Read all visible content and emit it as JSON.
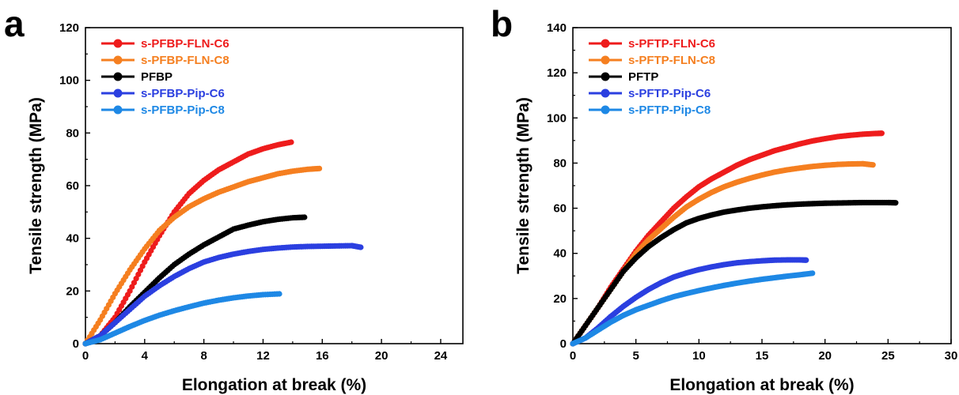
{
  "chart_data": [
    {
      "type": "line",
      "panel_label": "a",
      "xlabel": "Elongation at break (%)",
      "ylabel": "Tensile strength (MPa)",
      "xlim": [
        0,
        25.5
      ],
      "ylim": [
        0,
        120
      ],
      "xticks": [
        0,
        4,
        8,
        12,
        16,
        20,
        24
      ],
      "yticks": [
        0,
        20,
        40,
        60,
        80,
        100,
        120
      ],
      "legend_position": "top-left",
      "grid": false,
      "series": [
        {
          "name": "s-PFBP-FLN-C6",
          "color": "#ee1c1c",
          "x": [
            0,
            1,
            2,
            3,
            4,
            5,
            6,
            7,
            8,
            9,
            10,
            11,
            12,
            13,
            13.9
          ],
          "y": [
            0,
            3,
            10,
            20,
            31,
            41,
            50,
            57,
            62,
            66,
            69,
            72,
            74,
            75.5,
            76.5
          ]
        },
        {
          "name": "s-PFBP-FLN-C8",
          "color": "#f57f20",
          "x": [
            0,
            1,
            2,
            3,
            4,
            5,
            6,
            7,
            8,
            9,
            10,
            11,
            12,
            13,
            14,
            15,
            15.8
          ],
          "y": [
            0,
            9,
            19,
            28,
            36,
            43,
            48,
            52,
            55,
            57.5,
            59.5,
            61.5,
            63,
            64.5,
            65.5,
            66.2,
            66.5
          ]
        },
        {
          "name": "PFBP",
          "color": "#000000",
          "x": [
            0,
            1,
            2,
            3,
            4,
            5,
            6,
            7,
            8,
            9,
            10,
            11,
            12,
            13,
            14,
            14.8
          ],
          "y": [
            0,
            3,
            8,
            14,
            19.5,
            25,
            30,
            34,
            37.5,
            40.5,
            43.5,
            45,
            46.3,
            47.2,
            47.8,
            48
          ]
        },
        {
          "name": "s-PFBP-Pip-C6",
          "color": "#2b3fe0",
          "x": [
            0,
            1,
            2,
            3,
            4,
            5,
            6,
            7,
            8,
            9,
            10,
            11,
            12,
            13,
            14,
            15,
            16,
            17,
            18,
            18.6
          ],
          "y": [
            0,
            3,
            8,
            13,
            18,
            22,
            25.5,
            28.5,
            31,
            32.7,
            34,
            35,
            35.8,
            36.3,
            36.7,
            36.9,
            37,
            37.1,
            37.2,
            36.6
          ]
        },
        {
          "name": "s-PFBP-Pip-C8",
          "color": "#1e88e5",
          "x": [
            0,
            1,
            2,
            3,
            4,
            5,
            6,
            7,
            8,
            9,
            10,
            11,
            12,
            13.1
          ],
          "y": [
            0,
            1.5,
            4,
            6.5,
            8.8,
            10.8,
            12.5,
            14,
            15.4,
            16.5,
            17.4,
            18.1,
            18.6,
            18.9
          ]
        }
      ]
    },
    {
      "type": "line",
      "panel_label": "b",
      "xlabel": "Elongation at break (%)",
      "ylabel": "Tensile strength (MPa)",
      "xlim": [
        0,
        30
      ],
      "ylim": [
        0,
        140
      ],
      "xticks": [
        0,
        5,
        10,
        15,
        20,
        25,
        30
      ],
      "yticks": [
        0,
        20,
        40,
        60,
        80,
        100,
        120,
        140
      ],
      "legend_position": "top-left",
      "grid": false,
      "series": [
        {
          "name": "s-PFTP-FLN-C6",
          "color": "#ee1c1c",
          "x": [
            0,
            1,
            2,
            3,
            4,
            5,
            6,
            7,
            8,
            9,
            10,
            11,
            12,
            13,
            14,
            15,
            16,
            17,
            18,
            19,
            20,
            21,
            22,
            23,
            24,
            24.5
          ],
          "y": [
            0,
            8,
            16,
            25,
            33,
            41,
            48,
            54,
            60,
            65,
            69.5,
            73,
            76,
            79,
            81.5,
            83.5,
            85.5,
            87,
            88.5,
            89.8,
            90.8,
            91.7,
            92.3,
            92.8,
            93.1,
            93.2
          ]
        },
        {
          "name": "s-PFTP-FLN-C8",
          "color": "#f57f20",
          "x": [
            0,
            1,
            2,
            3,
            4,
            5,
            6,
            7,
            8,
            9,
            10,
            11,
            12,
            13,
            14,
            15,
            16,
            17,
            18,
            19,
            20,
            21,
            22,
            23,
            23.8
          ],
          "y": [
            0,
            8,
            16,
            24,
            32,
            40,
            46,
            51,
            56,
            60.5,
            64,
            67,
            69.5,
            71.5,
            73.2,
            74.7,
            76,
            77,
            77.8,
            78.5,
            79,
            79.4,
            79.6,
            79.7,
            79.2
          ]
        },
        {
          "name": "PFTP",
          "color": "#000000",
          "x": [
            0,
            1,
            2,
            3,
            4,
            5,
            6,
            7,
            8,
            9,
            10,
            11,
            12,
            13,
            14,
            15,
            16,
            17,
            18,
            19,
            20,
            21,
            22,
            23,
            24,
            25,
            25.6
          ],
          "y": [
            0,
            8,
            16,
            24,
            32,
            38,
            43,
            47,
            50.5,
            53.5,
            55.5,
            57,
            58.3,
            59.2,
            60,
            60.6,
            61.1,
            61.5,
            61.8,
            62,
            62.2,
            62.3,
            62.4,
            62.5,
            62.5,
            62.5,
            62.4
          ]
        },
        {
          "name": "s-PFTP-Pip-C6",
          "color": "#2b3fe0",
          "x": [
            0,
            1,
            2,
            3,
            4,
            5,
            6,
            7,
            8,
            9,
            10,
            11,
            12,
            13,
            14,
            15,
            16,
            17,
            18,
            18.5
          ],
          "y": [
            0,
            2.5,
            7,
            12,
            16.5,
            20.5,
            24,
            27,
            29.5,
            31.3,
            32.8,
            34,
            35,
            35.8,
            36.3,
            36.7,
            37,
            37.1,
            37.1,
            37
          ]
        },
        {
          "name": "s-PFTP-Pip-C8",
          "color": "#1e88e5",
          "x": [
            0,
            1,
            2,
            3,
            4,
            5,
            6,
            7,
            8,
            9,
            10,
            11,
            12,
            13,
            14,
            15,
            16,
            17,
            18,
            19
          ],
          "y": [
            0,
            2.5,
            6,
            9.5,
            12.5,
            15,
            17,
            19,
            20.8,
            22.2,
            23.5,
            24.7,
            25.8,
            26.8,
            27.7,
            28.5,
            29.2,
            29.9,
            30.5,
            31.2
          ]
        }
      ]
    }
  ]
}
